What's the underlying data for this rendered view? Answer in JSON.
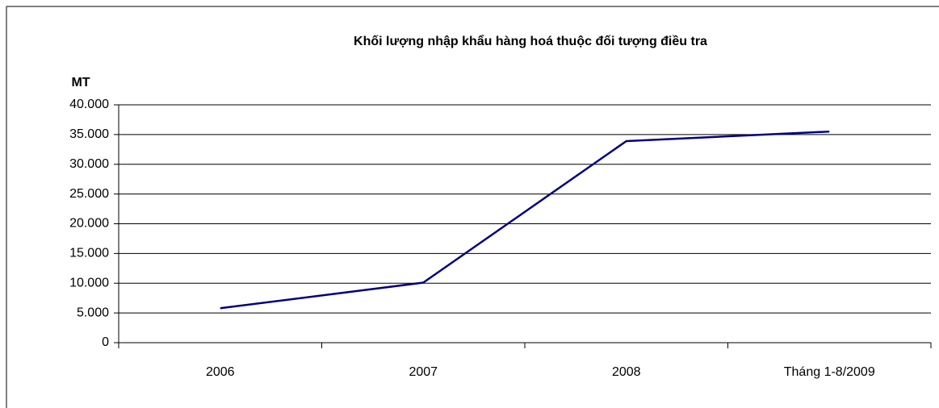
{
  "chart_data": {
    "type": "line",
    "title": "Khối lượng nhập khẩu hàng hoá thuộc đối tượng điều tra",
    "y_label": "MT",
    "categories": [
      "2006",
      "2007",
      "2008",
      "Tháng 1-8/2009"
    ],
    "values": [
      5800,
      10100,
      33900,
      35500
    ],
    "color": "#000080",
    "ylim": [
      0,
      40000
    ],
    "yticks": [
      0,
      {
        "value": 5000,
        "label": "5.000"
      },
      {
        "value": 10000,
        "label": "10.000"
      },
      {
        "value": 15000,
        "label": "15.000"
      },
      {
        "value": 20000,
        "label": "20.000"
      },
      {
        "value": 25000,
        "label": "25.000"
      },
      {
        "value": 30000,
        "label": "30.000"
      },
      {
        "value": 35000,
        "label": "35.000"
      },
      {
        "value": 40000,
        "label": "40.000"
      }
    ],
    "grid": true
  }
}
